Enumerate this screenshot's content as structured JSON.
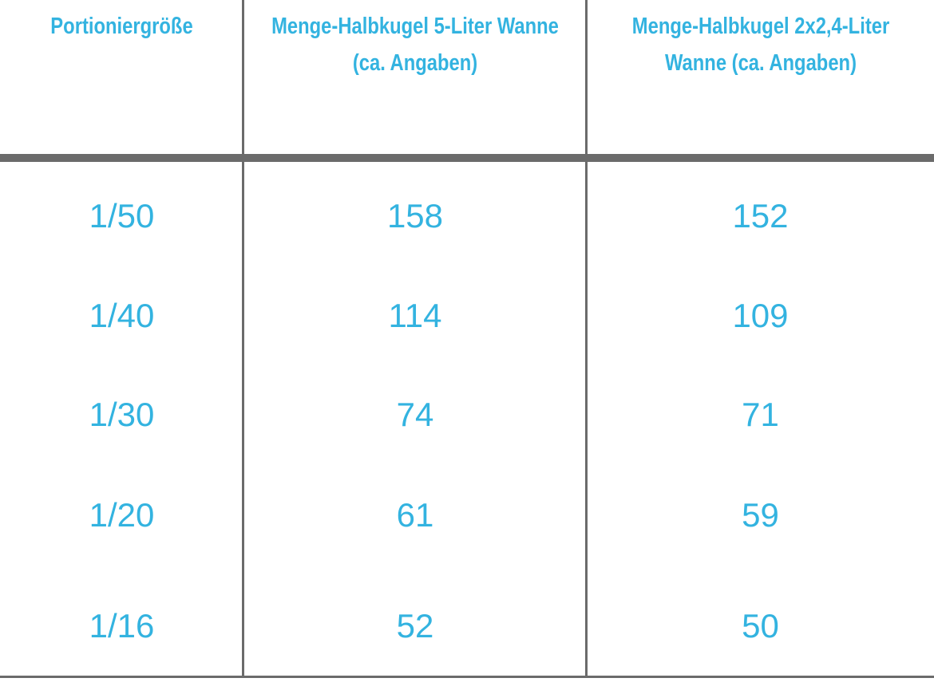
{
  "table": {
    "headers": [
      {
        "line1": "Portioniergröße",
        "line2": ""
      },
      {
        "line1": "Menge-Halbkugel 5-Liter Wanne",
        "line2": "(ca. Angaben)"
      },
      {
        "line1": "Menge-Halbkugel 2x2,4-Liter",
        "line2": "Wanne (ca. Angaben)"
      }
    ],
    "rows": [
      {
        "size": "1/50",
        "tub5": "158",
        "tub24": "152"
      },
      {
        "size": "1/40",
        "tub5": "114",
        "tub24": "109"
      },
      {
        "size": "1/30",
        "tub5": "74",
        "tub24": "71"
      },
      {
        "size": "1/20",
        "tub5": "61",
        "tub24": "59"
      },
      {
        "size": "1/16",
        "tub5": "52",
        "tub24": "50"
      }
    ]
  }
}
